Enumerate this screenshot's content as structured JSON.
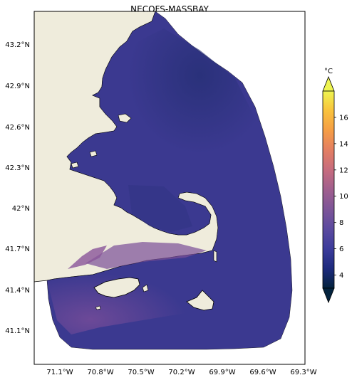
{
  "figure": {
    "title": "NECOFS-MASSBAY"
  },
  "map": {
    "colors": {
      "land": "#efecdc",
      "ocean_shallow": "#6b4596",
      "ocean_mid": "#3f3a92",
      "ocean_deep": "#2c2d7a",
      "coast_stroke": "#000000"
    },
    "lat_labels": [
      "43.2°N",
      "42.9°N",
      "42.6°N",
      "42.3°N",
      "42°N",
      "41.7°N",
      "41.4°N",
      "41.1°N"
    ],
    "lon_labels": [
      "71.1°W",
      "70.8°W",
      "70.5°W",
      "70.2°W",
      "69.9°W",
      "69.6°W",
      "69.3°W"
    ]
  },
  "colorbar": {
    "unit": "°C",
    "ticks": [
      "4",
      "6",
      "8",
      "10",
      "12",
      "14",
      "16"
    ],
    "tick_values": [
      4,
      6,
      8,
      10,
      12,
      14,
      16
    ],
    "vmin": 3,
    "vmax": 18,
    "extend": "both",
    "colormap": "thermal",
    "stops": [
      "#04233e",
      "#1d2a7d",
      "#3c3c9b",
      "#5b4a9f",
      "#7d5598",
      "#a05f8e",
      "#c66c7e",
      "#e37e63",
      "#f59d45",
      "#f9c23d",
      "#eef450"
    ]
  }
}
